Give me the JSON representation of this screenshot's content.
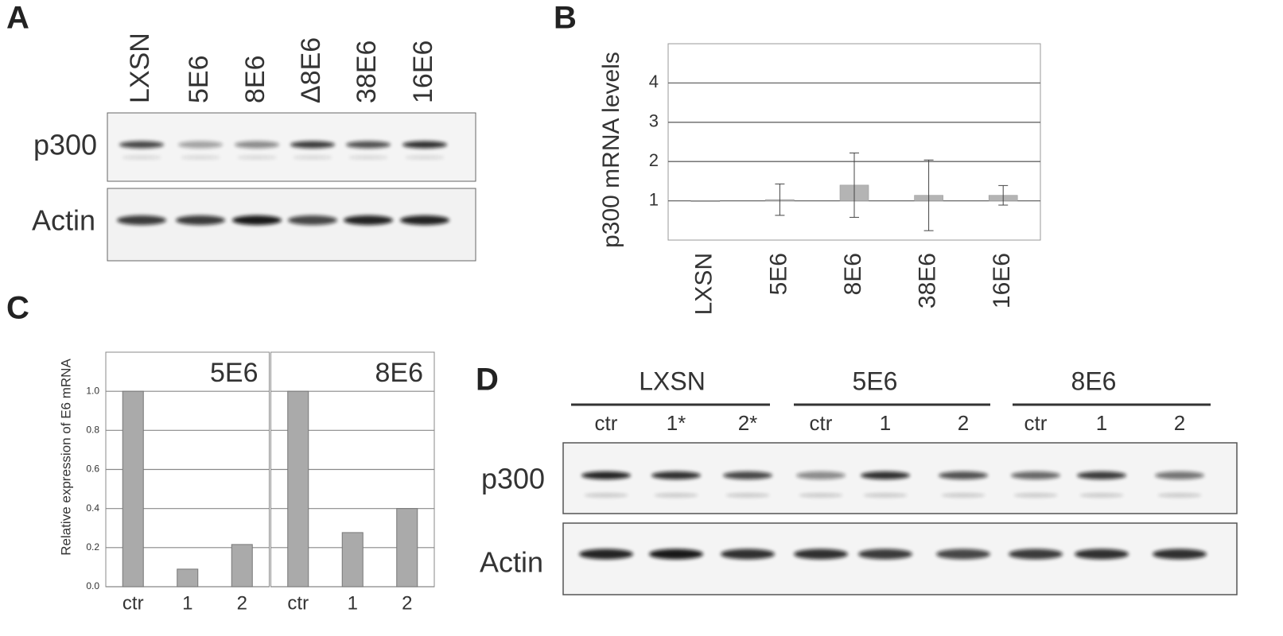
{
  "panel_labels": [
    "A",
    "B",
    "C",
    "D"
  ],
  "blot_a": {
    "lanes": [
      "LXSN",
      "5E6",
      "8E6",
      "Δ8E6",
      "38E6",
      "16E6"
    ],
    "rows": [
      "p300",
      "Actin"
    ]
  },
  "blot_d": {
    "groups": [
      {
        "name": "LXSN",
        "lanes": [
          "ctr",
          "1*",
          "2*"
        ]
      },
      {
        "name": "5E6",
        "lanes": [
          "ctr",
          "1",
          "2"
        ]
      },
      {
        "name": "8E6",
        "lanes": [
          "ctr",
          "1",
          "2"
        ]
      }
    ],
    "rows": [
      "p300",
      "Actin"
    ]
  },
  "chart_data": [
    {
      "type": "bar",
      "ylabel": "p300 mRNA levels",
      "categories": [
        "LXSN",
        "5E6",
        "8E6",
        "38E6",
        "16E6"
      ],
      "values": [
        1.0,
        1.03,
        1.4,
        1.14,
        1.14
      ],
      "errors": [
        null,
        0.4,
        0.82,
        0.9,
        0.25
      ],
      "baseline": 1,
      "color": "#b4b4b4",
      "ylim": [
        0,
        5
      ],
      "yticks": [
        1,
        2,
        3,
        4
      ],
      "grid": true
    },
    {
      "type": "facet_bar",
      "ylabel": "Relative expression of E6 mRNA",
      "categories": [
        "ctr",
        "1",
        "2"
      ],
      "facets": [
        {
          "title": "5E6",
          "values": [
            1.0,
            0.09,
            0.216
          ]
        },
        {
          "title": "8E6",
          "values": [
            1.0,
            0.277,
            0.4
          ]
        }
      ],
      "color": "#aaaaaa",
      "ylim": [
        0,
        1.2
      ],
      "yticks": [
        {
          "value": 0,
          "label": "0.0"
        },
        0.2,
        0.4,
        0.6,
        0.8,
        {
          "value": 1,
          "label": "1.0"
        }
      ],
      "grid": true
    }
  ]
}
